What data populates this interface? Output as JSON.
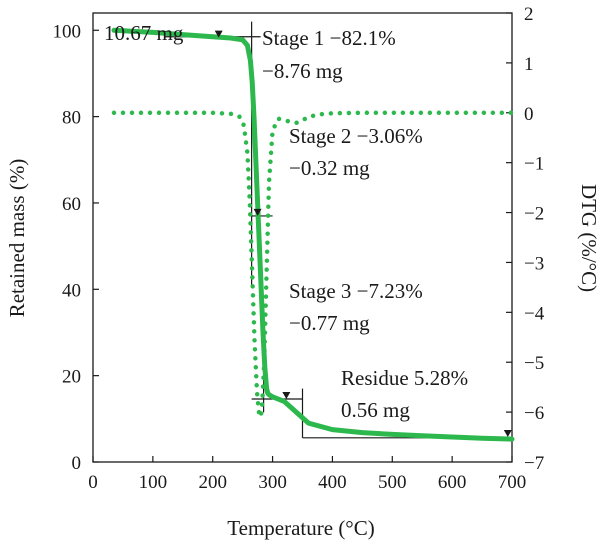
{
  "chart_data": {
    "type": "line",
    "title": "",
    "xlabel": "Temperature (°C)",
    "ylabel": "Retained mass (%)",
    "y2label": "DTG (%/°C)",
    "xlim": [
      0,
      700
    ],
    "ylim": [
      0,
      104
    ],
    "y2lim": [
      -7,
      2
    ],
    "xticks": [
      0,
      100,
      200,
      300,
      400,
      500,
      600,
      700
    ],
    "yticks": [
      0,
      20,
      40,
      60,
      80,
      100
    ],
    "y2ticks": [
      2,
      1,
      0,
      -1,
      -2,
      -3,
      -4,
      -5,
      -6,
      -7
    ],
    "grid": false,
    "line_color": "#2db84d",
    "series": [
      {
        "axis": "left",
        "style": "solid",
        "x": [
          35,
          100,
          150,
          200,
          230,
          250,
          258,
          263,
          266,
          269,
          272,
          275,
          278,
          281,
          284,
          287,
          290,
          292,
          295,
          300,
          320,
          340,
          360,
          400,
          450,
          500,
          550,
          600,
          650,
          700
        ],
        "y": [
          100.0,
          99.5,
          99.0,
          98.5,
          98.2,
          97.8,
          96.5,
          93.0,
          88.0,
          80.0,
          70.0,
          60.0,
          50.0,
          40.0,
          30.0,
          22.0,
          17.0,
          15.9,
          15.5,
          15.1,
          14.0,
          11.5,
          9.0,
          7.5,
          6.8,
          6.4,
          6.1,
          5.8,
          5.5,
          5.3
        ]
      },
      {
        "axis": "right",
        "style": "dotted",
        "x": [
          35,
          100,
          150,
          200,
          230,
          245,
          252,
          258,
          262,
          266,
          270,
          274,
          278,
          282,
          286,
          290,
          294,
          300,
          310,
          320,
          330,
          340,
          350,
          360,
          380,
          400,
          450,
          500,
          550,
          600,
          650,
          700
        ],
        "y": [
          0.0,
          0.0,
          0.0,
          0.0,
          -0.02,
          -0.08,
          -0.25,
          -0.8,
          -1.8,
          -3.2,
          -4.6,
          -5.6,
          -6.1,
          -6.0,
          -5.0,
          -3.2,
          -1.4,
          -0.35,
          -0.12,
          -0.15,
          -0.18,
          -0.2,
          -0.15,
          -0.08,
          -0.03,
          -0.01,
          0.0,
          0.0,
          0.0,
          0.0,
          0.0,
          0.0
        ]
      }
    ],
    "annotations": [
      {
        "text": "10.67 mg"
      },
      {
        "text": "Stage 1 −82.1%"
      },
      {
        "text": "−8.76 mg"
      },
      {
        "text": "Stage 2 −3.06%"
      },
      {
        "text": "−0.32 mg"
      },
      {
        "text": "Stage 3 −7.23%"
      },
      {
        "text": "−0.77 mg"
      },
      {
        "text": "Residue 5.28%"
      },
      {
        "text": "0.56 mg"
      }
    ],
    "markers": [
      {
        "x": 210,
        "y": 98.3
      },
      {
        "x": 275,
        "y": 57.0
      },
      {
        "x": 323,
        "y": 14.6
      },
      {
        "x": 693,
        "y": 5.8
      }
    ]
  }
}
